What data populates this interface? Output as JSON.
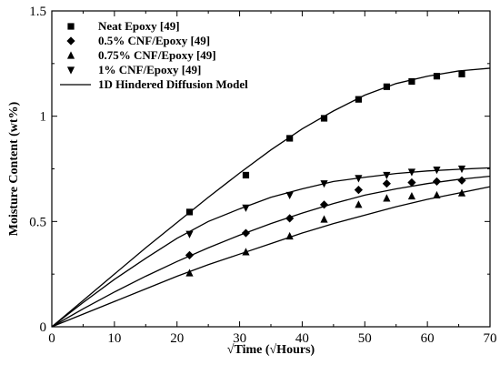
{
  "chart_data": {
    "type": "scatter",
    "xlabel": "√Time (√Hours)",
    "ylabel": "Moisture Content (wt%)",
    "xlim": [
      0,
      70
    ],
    "ylim": [
      0,
      1.5
    ],
    "x_ticks": [
      "0",
      "10",
      "20",
      "30",
      "40",
      "50",
      "60",
      "70"
    ],
    "y_ticks": [
      "0",
      "0.5",
      "1",
      "1.5"
    ],
    "legend_position": "top-left",
    "grid": false,
    "series": [
      {
        "name": "Neat Epoxy [49]",
        "marker": "square",
        "points": [
          [
            22,
            0.545
          ],
          [
            31,
            0.72
          ],
          [
            38,
            0.895
          ],
          [
            43.5,
            0.99
          ],
          [
            49,
            1.08
          ],
          [
            53.5,
            1.14
          ],
          [
            57.5,
            1.165
          ],
          [
            61.5,
            1.19
          ],
          [
            65.5,
            1.2
          ]
        ]
      },
      {
        "name": "0.5% CNF/Epoxy [49]",
        "marker": "diamond",
        "points": [
          [
            22,
            0.34
          ],
          [
            31,
            0.445
          ],
          [
            38,
            0.515
          ],
          [
            43.5,
            0.58
          ],
          [
            49,
            0.65
          ],
          [
            53.5,
            0.68
          ],
          [
            57.5,
            0.685
          ],
          [
            61.5,
            0.69
          ],
          [
            65.5,
            0.695
          ]
        ]
      },
      {
        "name": "0.75% CNF/Epoxy [49]",
        "marker": "triangle-up",
        "points": [
          [
            22,
            0.255
          ],
          [
            31,
            0.355
          ],
          [
            38,
            0.43
          ],
          [
            43.5,
            0.51
          ],
          [
            49,
            0.58
          ],
          [
            53.5,
            0.61
          ],
          [
            57.5,
            0.62
          ],
          [
            61.5,
            0.625
          ],
          [
            65.5,
            0.635
          ]
        ]
      },
      {
        "name": "1% CNF/Epoxy [49]",
        "marker": "triangle-down",
        "points": [
          [
            22,
            0.44
          ],
          [
            31,
            0.565
          ],
          [
            38,
            0.625
          ],
          [
            43.5,
            0.68
          ],
          [
            49,
            0.705
          ],
          [
            53.5,
            0.72
          ],
          [
            57.5,
            0.735
          ],
          [
            61.5,
            0.745
          ],
          [
            65.5,
            0.75
          ]
        ]
      }
    ],
    "model": {
      "name": "1D Hindered Diffusion Model",
      "style": "solid-line",
      "curves": [
        {
          "x": [
            0,
            5,
            10,
            15,
            20,
            25,
            30,
            35,
            40,
            45,
            50,
            55,
            60,
            65,
            70
          ],
          "y": [
            0,
            0.125,
            0.25,
            0.375,
            0.495,
            0.615,
            0.73,
            0.84,
            0.94,
            1.025,
            1.1,
            1.155,
            1.19,
            1.215,
            1.228
          ]
        },
        {
          "x": [
            0,
            5,
            10,
            15,
            20,
            25,
            30,
            35,
            40,
            45,
            50,
            55,
            60,
            65,
            70
          ],
          "y": [
            0,
            0.115,
            0.225,
            0.325,
            0.42,
            0.5,
            0.56,
            0.615,
            0.655,
            0.69,
            0.71,
            0.728,
            0.74,
            0.748,
            0.755
          ]
        },
        {
          "x": [
            0,
            5,
            10,
            15,
            20,
            25,
            30,
            35,
            40,
            45,
            50,
            55,
            60,
            65,
            70
          ],
          "y": [
            0,
            0.085,
            0.165,
            0.24,
            0.31,
            0.375,
            0.435,
            0.49,
            0.54,
            0.585,
            0.625,
            0.655,
            0.68,
            0.7,
            0.715
          ]
        },
        {
          "x": [
            0,
            5,
            10,
            15,
            20,
            25,
            30,
            35,
            40,
            45,
            50,
            55,
            60,
            65,
            70
          ],
          "y": [
            0,
            0.06,
            0.12,
            0.18,
            0.24,
            0.295,
            0.345,
            0.395,
            0.445,
            0.49,
            0.53,
            0.57,
            0.605,
            0.635,
            0.665
          ]
        }
      ]
    }
  }
}
